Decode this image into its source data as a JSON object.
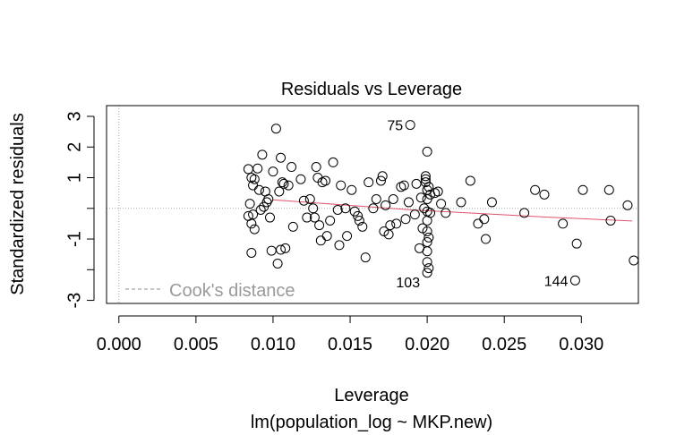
{
  "chart_data": {
    "type": "scatter",
    "title": "Residuals vs Leverage",
    "xlabel": "Leverage",
    "subtitle": "lm(population_log ~ MKP.new)",
    "ylabel": "Standardized residuals",
    "xlim": [
      -0.0008,
      0.0337
    ],
    "ylim": [
      -3.1,
      3.35
    ],
    "x_ticks": [
      0.0,
      0.005,
      0.01,
      0.015,
      0.02,
      0.025,
      0.03
    ],
    "x_tick_labels": [
      "0.000",
      "0.005",
      "0.010",
      "0.015",
      "0.020",
      "0.025",
      "0.030"
    ],
    "y_ticks": [
      -3,
      -2,
      -1,
      0,
      1,
      2,
      3
    ],
    "y_tick_labels": [
      "-3",
      "",
      "-1",
      "",
      "1",
      "2",
      "3"
    ],
    "cooks_legend": "Cook's distance",
    "reference_line_y": 0,
    "reference_line_x": 0,
    "smooth_color": "#DF536B",
    "reference_color": "#aaaaaa",
    "point_labels": [
      {
        "text": "75",
        "x": 0.0189,
        "y": 2.72
      },
      {
        "text": "103",
        "x": 0.02,
        "y": -2.4
      },
      {
        "text": "144",
        "x": 0.0296,
        "y": -2.35
      }
    ],
    "smooth_line": [
      {
        "x": 0.01,
        "y": 0.28
      },
      {
        "x": 0.013,
        "y": 0.17
      },
      {
        "x": 0.016,
        "y": 0.06
      },
      {
        "x": 0.019,
        "y": -0.05
      },
      {
        "x": 0.022,
        "y": -0.13
      },
      {
        "x": 0.025,
        "y": -0.21
      },
      {
        "x": 0.028,
        "y": -0.29
      },
      {
        "x": 0.031,
        "y": -0.36
      },
      {
        "x": 0.0333,
        "y": -0.41
      }
    ],
    "points": [
      {
        "x": 0.0084,
        "y": 1.28
      },
      {
        "x": 0.0086,
        "y": 1.0
      },
      {
        "x": 0.0087,
        "y": 0.75
      },
      {
        "x": 0.0085,
        "y": 0.15
      },
      {
        "x": 0.0084,
        "y": -0.25
      },
      {
        "x": 0.0087,
        "y": -0.2
      },
      {
        "x": 0.0088,
        "y": 0.95
      },
      {
        "x": 0.009,
        "y": 1.3
      },
      {
        "x": 0.0091,
        "y": 0.6
      },
      {
        "x": 0.0093,
        "y": 1.75
      },
      {
        "x": 0.0086,
        "y": -0.5
      },
      {
        "x": 0.0088,
        "y": -0.68
      },
      {
        "x": 0.0086,
        "y": -1.45
      },
      {
        "x": 0.0092,
        "y": -0.05
      },
      {
        "x": 0.0094,
        "y": 0.05
      },
      {
        "x": 0.0095,
        "y": 0.55
      },
      {
        "x": 0.0096,
        "y": 0.2
      },
      {
        "x": 0.0097,
        "y": 0.3
      },
      {
        "x": 0.0098,
        "y": -0.3
      },
      {
        "x": 0.01,
        "y": 1.2
      },
      {
        "x": 0.0102,
        "y": 2.6
      },
      {
        "x": 0.0104,
        "y": 0.55
      },
      {
        "x": 0.0105,
        "y": 1.65
      },
      {
        "x": 0.0106,
        "y": 0.85
      },
      {
        "x": 0.0107,
        "y": 0.8
      },
      {
        "x": 0.0108,
        "y": -1.3
      },
      {
        "x": 0.0105,
        "y": -1.35
      },
      {
        "x": 0.0099,
        "y": -1.38
      },
      {
        "x": 0.0103,
        "y": -1.8
      },
      {
        "x": 0.011,
        "y": 0.75
      },
      {
        "x": 0.0112,
        "y": 1.35
      },
      {
        "x": 0.0113,
        "y": -0.6
      },
      {
        "x": 0.0118,
        "y": 0.95
      },
      {
        "x": 0.012,
        "y": 0.25
      },
      {
        "x": 0.0122,
        "y": -0.3
      },
      {
        "x": 0.0124,
        "y": 0.3
      },
      {
        "x": 0.0126,
        "y": 0.0
      },
      {
        "x": 0.0127,
        "y": -0.3
      },
      {
        "x": 0.0128,
        "y": 1.35
      },
      {
        "x": 0.0129,
        "y": 1.0
      },
      {
        "x": 0.013,
        "y": -0.55
      },
      {
        "x": 0.0131,
        "y": -1.05
      },
      {
        "x": 0.0132,
        "y": 0.85
      },
      {
        "x": 0.0134,
        "y": 0.9
      },
      {
        "x": 0.0135,
        "y": -0.9
      },
      {
        "x": 0.0137,
        "y": -0.4
      },
      {
        "x": 0.0139,
        "y": 1.5
      },
      {
        "x": 0.0142,
        "y": -0.05
      },
      {
        "x": 0.0143,
        "y": -1.2
      },
      {
        "x": 0.0144,
        "y": 0.75
      },
      {
        "x": 0.0147,
        "y": 0.0
      },
      {
        "x": 0.0148,
        "y": -0.9
      },
      {
        "x": 0.0151,
        "y": 0.6
      },
      {
        "x": 0.0153,
        "y": -0.1
      },
      {
        "x": 0.0155,
        "y": -0.25
      },
      {
        "x": 0.0156,
        "y": -0.4
      },
      {
        "x": 0.0158,
        "y": -0.6
      },
      {
        "x": 0.016,
        "y": -1.6
      },
      {
        "x": 0.0162,
        "y": 0.85
      },
      {
        "x": 0.0165,
        "y": 0.0
      },
      {
        "x": 0.0167,
        "y": 0.3
      },
      {
        "x": 0.017,
        "y": 0.9
      },
      {
        "x": 0.0171,
        "y": 1.05
      },
      {
        "x": 0.0172,
        "y": -0.75
      },
      {
        "x": 0.0173,
        "y": 0.1
      },
      {
        "x": 0.0175,
        "y": -0.85
      },
      {
        "x": 0.0176,
        "y": -0.55
      },
      {
        "x": 0.0178,
        "y": 0.3
      },
      {
        "x": 0.018,
        "y": -0.5
      },
      {
        "x": 0.0183,
        "y": 0.7
      },
      {
        "x": 0.0185,
        "y": 0.75
      },
      {
        "x": 0.0186,
        "y": -0.35
      },
      {
        "x": 0.0188,
        "y": 0.2
      },
      {
        "x": 0.0189,
        "y": 2.72
      },
      {
        "x": 0.0192,
        "y": -0.2
      },
      {
        "x": 0.0193,
        "y": 0.8
      },
      {
        "x": 0.0195,
        "y": -1.3
      },
      {
        "x": 0.0196,
        "y": 0.35
      },
      {
        "x": 0.0197,
        "y": -0.65
      },
      {
        "x": 0.0198,
        "y": 0.0
      },
      {
        "x": 0.0199,
        "y": 0.95
      },
      {
        "x": 0.0199,
        "y": 1.05
      },
      {
        "x": 0.0199,
        "y": 0.85
      },
      {
        "x": 0.02,
        "y": 1.85
      },
      {
        "x": 0.02,
        "y": 0.6
      },
      {
        "x": 0.02,
        "y": 0.3
      },
      {
        "x": 0.02,
        "y": -0.1
      },
      {
        "x": 0.02,
        "y": -0.4
      },
      {
        "x": 0.02,
        "y": -0.75
      },
      {
        "x": 0.02,
        "y": -1.1
      },
      {
        "x": 0.02,
        "y": -1.4
      },
      {
        "x": 0.02,
        "y": -1.75
      },
      {
        "x": 0.02,
        "y": -2.1
      },
      {
        "x": 0.0201,
        "y": 0.7
      },
      {
        "x": 0.0201,
        "y": -1.95
      },
      {
        "x": 0.0201,
        "y": -0.95
      },
      {
        "x": 0.0202,
        "y": 0.45
      },
      {
        "x": 0.0202,
        "y": -0.15
      },
      {
        "x": 0.0205,
        "y": 0.5
      },
      {
        "x": 0.0207,
        "y": 0.55
      },
      {
        "x": 0.0209,
        "y": 0.15
      },
      {
        "x": 0.0212,
        "y": -0.15
      },
      {
        "x": 0.0222,
        "y": 0.2
      },
      {
        "x": 0.0228,
        "y": 0.9
      },
      {
        "x": 0.0233,
        "y": -0.5
      },
      {
        "x": 0.0237,
        "y": -0.35
      },
      {
        "x": 0.0238,
        "y": -1.0
      },
      {
        "x": 0.0242,
        "y": 0.2
      },
      {
        "x": 0.0263,
        "y": -0.15
      },
      {
        "x": 0.027,
        "y": 0.6
      },
      {
        "x": 0.0276,
        "y": 0.45
      },
      {
        "x": 0.0288,
        "y": -0.5
      },
      {
        "x": 0.0296,
        "y": -2.35
      },
      {
        "x": 0.0297,
        "y": -1.15
      },
      {
        "x": 0.0301,
        "y": 0.6
      },
      {
        "x": 0.0318,
        "y": 0.6
      },
      {
        "x": 0.0319,
        "y": -0.4
      },
      {
        "x": 0.033,
        "y": 0.1
      },
      {
        "x": 0.0334,
        "y": -1.7
      }
    ]
  }
}
